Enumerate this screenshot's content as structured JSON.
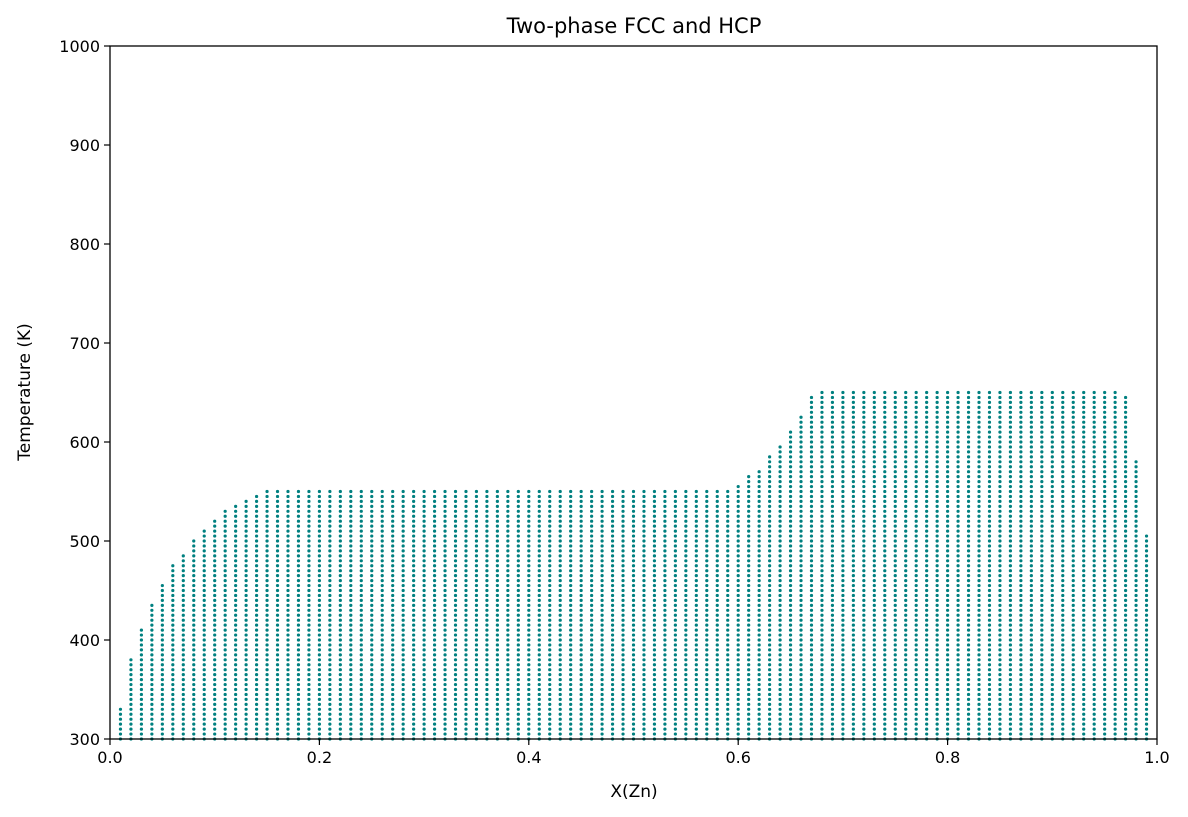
{
  "chart_data": {
    "type": "scatter",
    "title": "Two-phase FCC and HCP",
    "xlabel": "X(Zn)",
    "ylabel": "Temperature (K)",
    "xlim": [
      0.0,
      1.0
    ],
    "ylim": [
      300,
      1000
    ],
    "grid": false,
    "point_color": "#008080",
    "x_ticks": [
      "0.0",
      "0.2",
      "0.4",
      "0.6",
      "0.8",
      "1.0"
    ],
    "y_ticks": [
      "300",
      "400",
      "500",
      "600",
      "700",
      "800",
      "900",
      "1000"
    ],
    "temperature_step": 5,
    "temperature_min": 300,
    "columns": {
      "x": [
        0.01,
        0.02,
        0.03,
        0.04,
        0.05,
        0.06,
        0.07,
        0.08,
        0.09,
        0.1,
        0.11,
        0.12,
        0.13,
        0.14,
        0.15,
        0.16,
        0.17,
        0.18,
        0.19,
        0.2,
        0.21,
        0.22,
        0.23,
        0.24,
        0.25,
        0.26,
        0.27,
        0.28,
        0.29,
        0.3,
        0.31,
        0.32,
        0.33,
        0.34,
        0.35,
        0.36,
        0.37,
        0.38,
        0.39,
        0.4,
        0.41,
        0.42,
        0.43,
        0.44,
        0.45,
        0.46,
        0.47,
        0.48,
        0.49,
        0.5,
        0.51,
        0.52,
        0.53,
        0.54,
        0.55,
        0.56,
        0.57,
        0.58,
        0.59,
        0.6,
        0.61,
        0.62,
        0.63,
        0.64,
        0.65,
        0.66,
        0.67,
        0.68,
        0.69,
        0.7,
        0.71,
        0.72,
        0.73,
        0.74,
        0.75,
        0.76,
        0.77,
        0.78,
        0.79,
        0.8,
        0.81,
        0.82,
        0.83,
        0.84,
        0.85,
        0.86,
        0.87,
        0.88,
        0.89,
        0.9,
        0.91,
        0.92,
        0.93,
        0.94,
        0.95,
        0.96,
        0.97,
        0.98,
        0.99
      ],
      "t_max": [
        330,
        380,
        410,
        435,
        455,
        475,
        485,
        500,
        510,
        520,
        530,
        535,
        540,
        545,
        550,
        550,
        550,
        550,
        550,
        550,
        550,
        550,
        550,
        550,
        550,
        550,
        550,
        550,
        550,
        550,
        550,
        550,
        550,
        550,
        550,
        550,
        550,
        550,
        550,
        550,
        550,
        550,
        550,
        550,
        550,
        550,
        550,
        550,
        550,
        550,
        550,
        550,
        550,
        550,
        550,
        550,
        550,
        550,
        550,
        555,
        565,
        570,
        585,
        595,
        610,
        625,
        645,
        650,
        650,
        650,
        650,
        650,
        650,
        650,
        650,
        650,
        650,
        650,
        650,
        650,
        650,
        650,
        650,
        650,
        650,
        650,
        650,
        650,
        650,
        650,
        650,
        650,
        650,
        650,
        650,
        650,
        645,
        580,
        505
      ]
    }
  }
}
